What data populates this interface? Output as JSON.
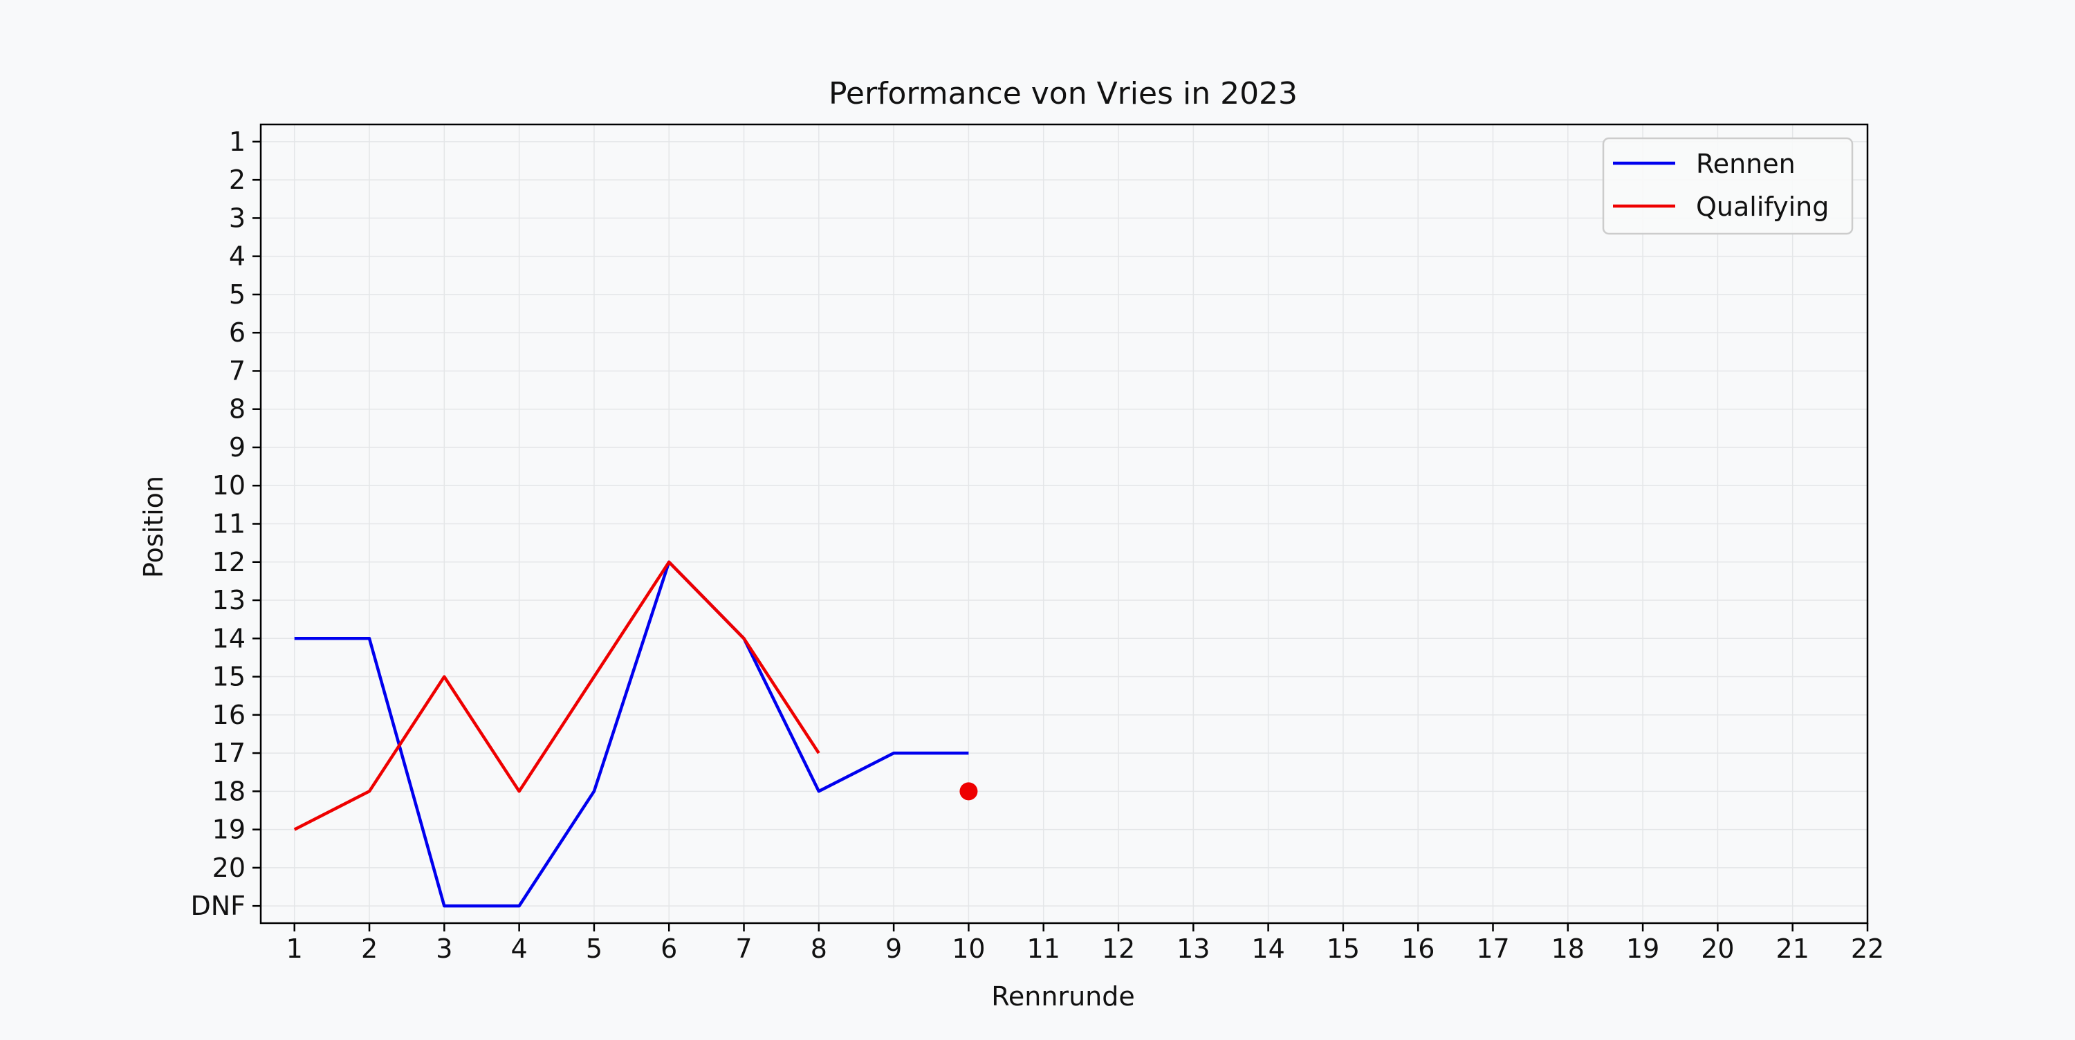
{
  "chart_data": {
    "type": "line",
    "title": "Performance von Vries in 2023",
    "xlabel": "Rennrunde",
    "ylabel": "Position",
    "x_ticks": [
      1,
      2,
      3,
      4,
      5,
      6,
      7,
      8,
      9,
      10,
      11,
      12,
      13,
      14,
      15,
      16,
      17,
      18,
      19,
      20,
      21,
      22
    ],
    "y_tick_labels": [
      "1",
      "2",
      "3",
      "4",
      "5",
      "6",
      "7",
      "8",
      "9",
      "10",
      "11",
      "12",
      "13",
      "14",
      "15",
      "16",
      "17",
      "18",
      "19",
      "20",
      "DNF"
    ],
    "y_axis_inverted": true,
    "xlim": [
      0.55,
      22
    ],
    "ylim": [
      0.55,
      21.45
    ],
    "grid": true,
    "legend_position": "top-right",
    "series": [
      {
        "name": "Rennen",
        "color": "#0000ee",
        "x": [
          1,
          2,
          3,
          4,
          5,
          6,
          7,
          8,
          9,
          10
        ],
        "y": [
          14,
          14,
          "DNF",
          "DNF",
          18,
          12,
          14,
          18,
          17,
          17
        ]
      },
      {
        "name": "Qualifying",
        "color": "#ee0000",
        "x": [
          1,
          2,
          3,
          4,
          5,
          6,
          7,
          8
        ],
        "y": [
          19,
          18,
          15,
          18,
          15,
          12,
          14,
          17
        ]
      }
    ],
    "markers": [
      {
        "x": 10,
        "y": 18,
        "color": "#ee0000",
        "series": "Qualifying"
      }
    ]
  }
}
